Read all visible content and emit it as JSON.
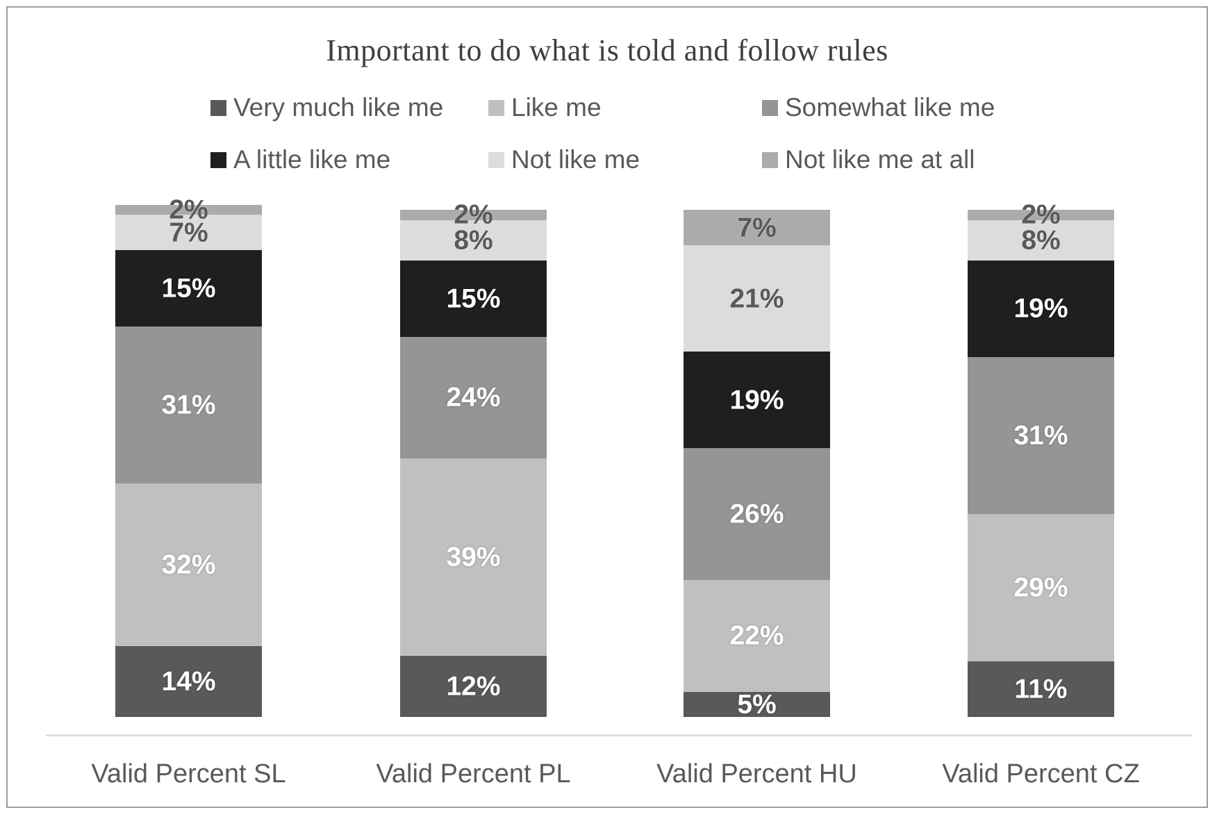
{
  "chart_data": {
    "type": "bar",
    "stacked": true,
    "orientation": "vertical",
    "title": "Important to do what is told and follow rules",
    "value_suffix": "%",
    "grid": false,
    "legend_position": "top",
    "legend_rows": 2,
    "categories": [
      "Valid Percent SL",
      "Valid Percent PL",
      "Valid Percent HU",
      "Valid Percent CZ"
    ],
    "series": [
      {
        "name": "Very much like me",
        "color": "#595959",
        "label_color": "light",
        "values": [
          14,
          12,
          5,
          11
        ]
      },
      {
        "name": "Like me",
        "color": "#c0c0c0",
        "label_color": "light",
        "values": [
          32,
          39,
          22,
          29
        ]
      },
      {
        "name": "Somewhat like me",
        "color": "#959595",
        "label_color": "light",
        "values": [
          31,
          24,
          26,
          31
        ]
      },
      {
        "name": "A little like me",
        "color": "#1f1f1f",
        "label_color": "light",
        "values": [
          15,
          15,
          19,
          19
        ]
      },
      {
        "name": "Not like me",
        "color": "#dcdcdc",
        "label_color": "dark",
        "values": [
          7,
          8,
          21,
          8
        ]
      },
      {
        "name": "Not like me at all",
        "color": "#ababab",
        "label_color": "dark",
        "values": [
          2,
          2,
          7,
          2
        ]
      }
    ],
    "axis": {
      "baseline_visible": true,
      "y_ticks_visible": false,
      "ylim": [
        0,
        100
      ]
    }
  },
  "colors": {
    "title_text": "#3f3f3f",
    "legend_text": "#595959",
    "axis_label_text": "#595959",
    "axis_line": "#dedede",
    "frame_border": "#9c9c9c",
    "background": "#ffffff"
  }
}
